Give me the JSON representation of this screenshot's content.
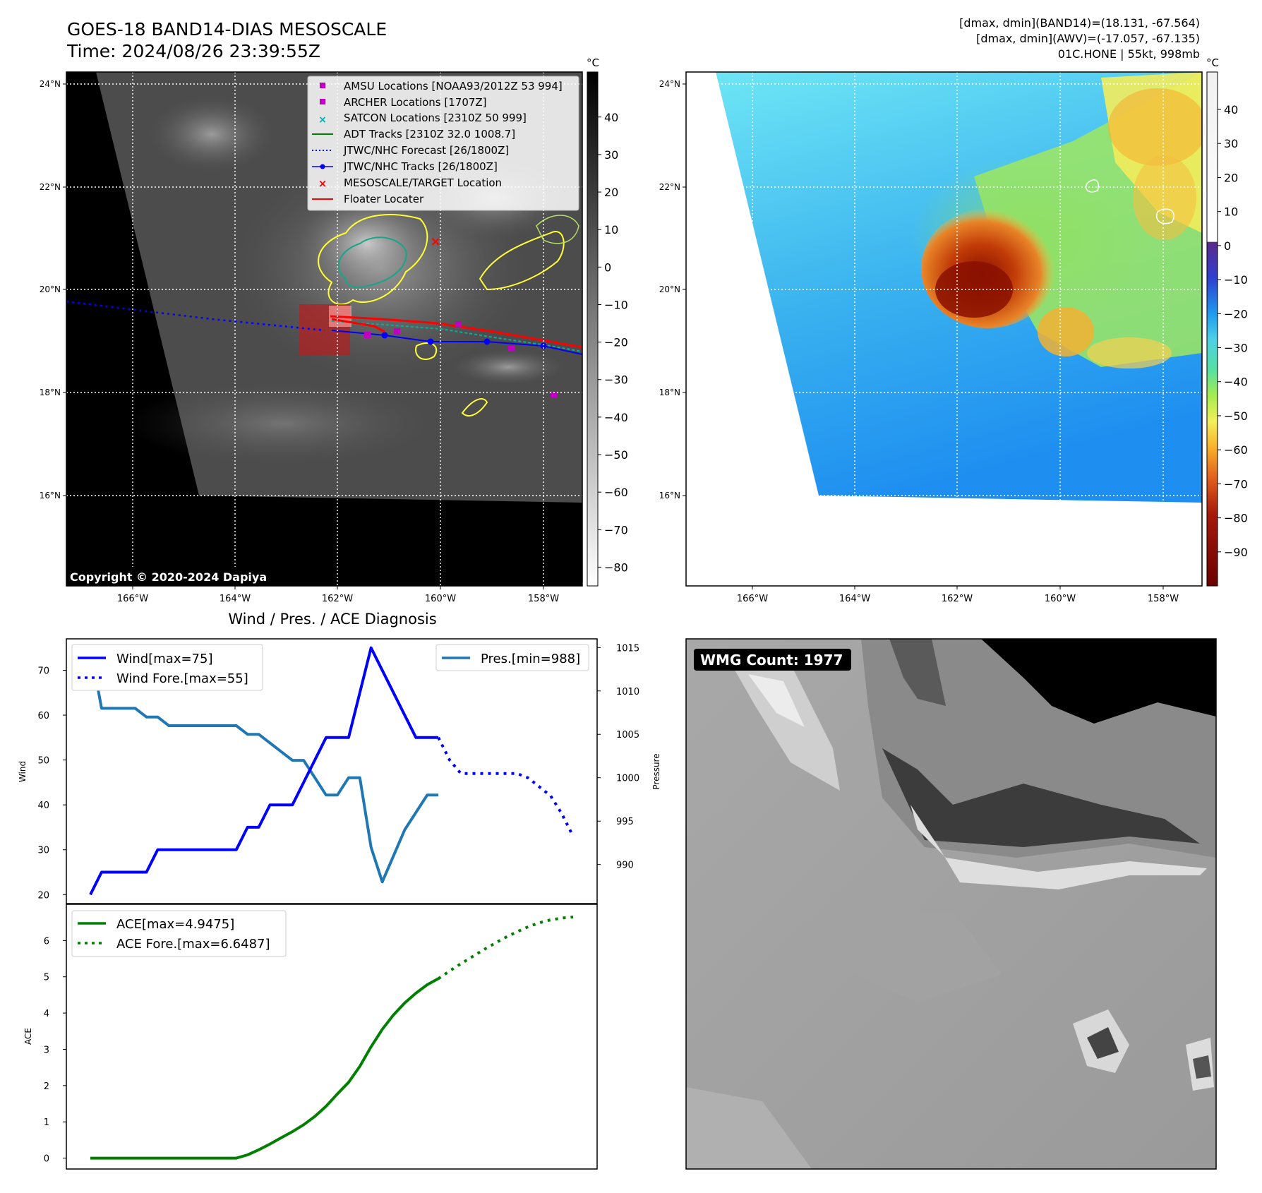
{
  "header": {
    "title_line1": "GOES-18 BAND14-DIAS MESOSCALE",
    "title_line2": "Time: 2024/08/26 23:39:55Z",
    "info_line1": "[dmax, dmin](BAND14)=(18.131, -67.564)",
    "info_line2": "[dmax, dmin](AWV)=(-17.057, -67.135)",
    "info_line3": "01C.HONE | 55kt, 998mb"
  },
  "maps": {
    "lat_ticks": [
      "24°N",
      "22°N",
      "20°N",
      "18°N",
      "16°N"
    ],
    "lon_ticks": [
      "166°W",
      "164°W",
      "162°W",
      "160°W",
      "158°W"
    ],
    "copyright": "Copyright © 2020-2024 Dapiya",
    "ir_colorbar": {
      "unit": "°C",
      "ticks": [
        "40",
        "30",
        "20",
        "10",
        "0",
        "−10",
        "−20",
        "−30",
        "−40",
        "−50",
        "−60",
        "−70",
        "−80"
      ]
    },
    "color_colorbar": {
      "unit": "°C",
      "ticks": [
        "40",
        "30",
        "20",
        "10",
        "0",
        "−10",
        "−20",
        "−30",
        "−40",
        "−50",
        "−60",
        "−70",
        "−80",
        "−90"
      ]
    },
    "legend": [
      {
        "label": "AMSU Locations [NOAA93/2012Z 53 994]",
        "marker": "square",
        "color": "#c000c0"
      },
      {
        "label": "ARCHER Locations [1707Z]",
        "marker": "square",
        "color": "#c000c0"
      },
      {
        "label": "SATCON Locations [2310Z 50 999]",
        "marker": "x",
        "color": "#00b0b0"
      },
      {
        "label": "ADT Tracks [2310Z 32.0 1008.7]",
        "marker": "line",
        "color": "#008000"
      },
      {
        "label": "JTWC/NHC Forecast [26/1800Z]",
        "marker": "dotted",
        "color": "#0000ff"
      },
      {
        "label": "JTWC/NHC Tracks [26/1800Z]",
        "marker": "line-dot",
        "color": "#0000ff"
      },
      {
        "label": "MESOSCALE/TARGET Location",
        "marker": "x",
        "color": "#ff0000"
      },
      {
        "label": "Floater Locater",
        "marker": "line",
        "color": "#ff0000"
      }
    ],
    "wmg_label": "WMG Count: 1977"
  },
  "diagnosis": {
    "title": "Wind / Pres. / ACE Diagnosis",
    "wind_ylabel": "Wind",
    "pres_ylabel": "Pressure",
    "ace_ylabel": "ACE",
    "wind_legend": [
      "Wind[max=75]",
      "Wind Fore.[max=55]"
    ],
    "pres_legend": [
      "Pres.[min=988]"
    ],
    "ace_legend": [
      "ACE[max=4.9475]",
      "ACE Fore.[max=6.6487]"
    ]
  },
  "colors": {
    "wind": "#0000ff",
    "pressure": "#1f77b4",
    "ace": "#008000",
    "floater": "#ff0000"
  },
  "chart_data": [
    {
      "type": "line",
      "title": "Wind / Pres. / ACE Diagnosis",
      "ylabel": "Wind",
      "ylim": [
        18,
        77
      ],
      "yticks": [
        20,
        30,
        40,
        50,
        60,
        70
      ],
      "series": [
        {
          "name": "Wind[max=75]",
          "x": [
            0,
            1,
            2,
            3,
            4,
            5,
            6,
            7,
            8,
            9,
            10,
            11,
            12,
            13,
            14,
            15,
            16,
            17,
            18,
            19,
            20,
            21,
            22,
            23,
            24,
            25,
            26,
            27,
            28,
            29,
            30,
            31
          ],
          "values": [
            20,
            25,
            25,
            25,
            25,
            25,
            30,
            30,
            30,
            30,
            30,
            30,
            30,
            30,
            35,
            35,
            40,
            40,
            40,
            45,
            50,
            55,
            55,
            55,
            65,
            75,
            70,
            65,
            60,
            55,
            55,
            55
          ]
        },
        {
          "name": "Wind Fore.[max=55]",
          "x": [
            31,
            32,
            33,
            34,
            35,
            36,
            37,
            38,
            39,
            40,
            41,
            42,
            43
          ],
          "values": [
            55,
            50,
            47,
            47,
            47,
            47,
            47,
            47,
            46,
            44,
            42,
            38,
            33
          ]
        }
      ]
    },
    {
      "type": "line",
      "ylabel": "Pressure",
      "ylim": [
        985.5,
        1016
      ],
      "yticks": [
        990,
        995,
        1000,
        1005,
        1010,
        1015
      ],
      "series": [
        {
          "name": "Pres.[min=988]",
          "x": [
            0,
            1,
            2,
            3,
            4,
            5,
            6,
            7,
            8,
            9,
            10,
            11,
            12,
            13,
            14,
            15,
            16,
            17,
            18,
            19,
            20,
            21,
            22,
            23,
            24,
            25,
            26,
            27,
            28,
            29,
            30,
            31
          ],
          "values": [
            1015,
            1008,
            1008,
            1008,
            1008,
            1007,
            1007,
            1006,
            1006,
            1006,
            1006,
            1006,
            1006,
            1006,
            1005,
            1005,
            1004,
            1003,
            1002,
            1002,
            1000,
            998,
            998,
            1000,
            1000,
            992,
            988,
            991,
            994,
            996,
            998,
            998
          ]
        }
      ]
    },
    {
      "type": "line",
      "ylabel": "ACE",
      "ylim": [
        -0.3,
        7.0
      ],
      "yticks": [
        0,
        1,
        2,
        3,
        4,
        5,
        6
      ],
      "series": [
        {
          "name": "ACE[max=4.9475]",
          "x": [
            0,
            1,
            2,
            3,
            4,
            5,
            6,
            7,
            8,
            9,
            10,
            11,
            12,
            13,
            14,
            15,
            16,
            17,
            18,
            19,
            20,
            21,
            22,
            23,
            24,
            25,
            26,
            27,
            28,
            29,
            30,
            31
          ],
          "values": [
            0,
            0,
            0,
            0,
            0,
            0,
            0,
            0,
            0,
            0,
            0,
            0,
            0,
            0,
            0.09,
            0.23,
            0.39,
            0.56,
            0.73,
            0.92,
            1.15,
            1.43,
            1.77,
            2.09,
            2.53,
            3.07,
            3.55,
            3.95,
            4.28,
            4.55,
            4.78,
            4.95
          ]
        },
        {
          "name": "ACE Fore.[max=6.6487]",
          "x": [
            31,
            32,
            33,
            34,
            35,
            36,
            37,
            38,
            39,
            40,
            41,
            42,
            43
          ],
          "values": [
            4.95,
            5.16,
            5.36,
            5.55,
            5.74,
            5.92,
            6.09,
            6.24,
            6.38,
            6.49,
            6.57,
            6.62,
            6.65
          ]
        }
      ]
    }
  ]
}
